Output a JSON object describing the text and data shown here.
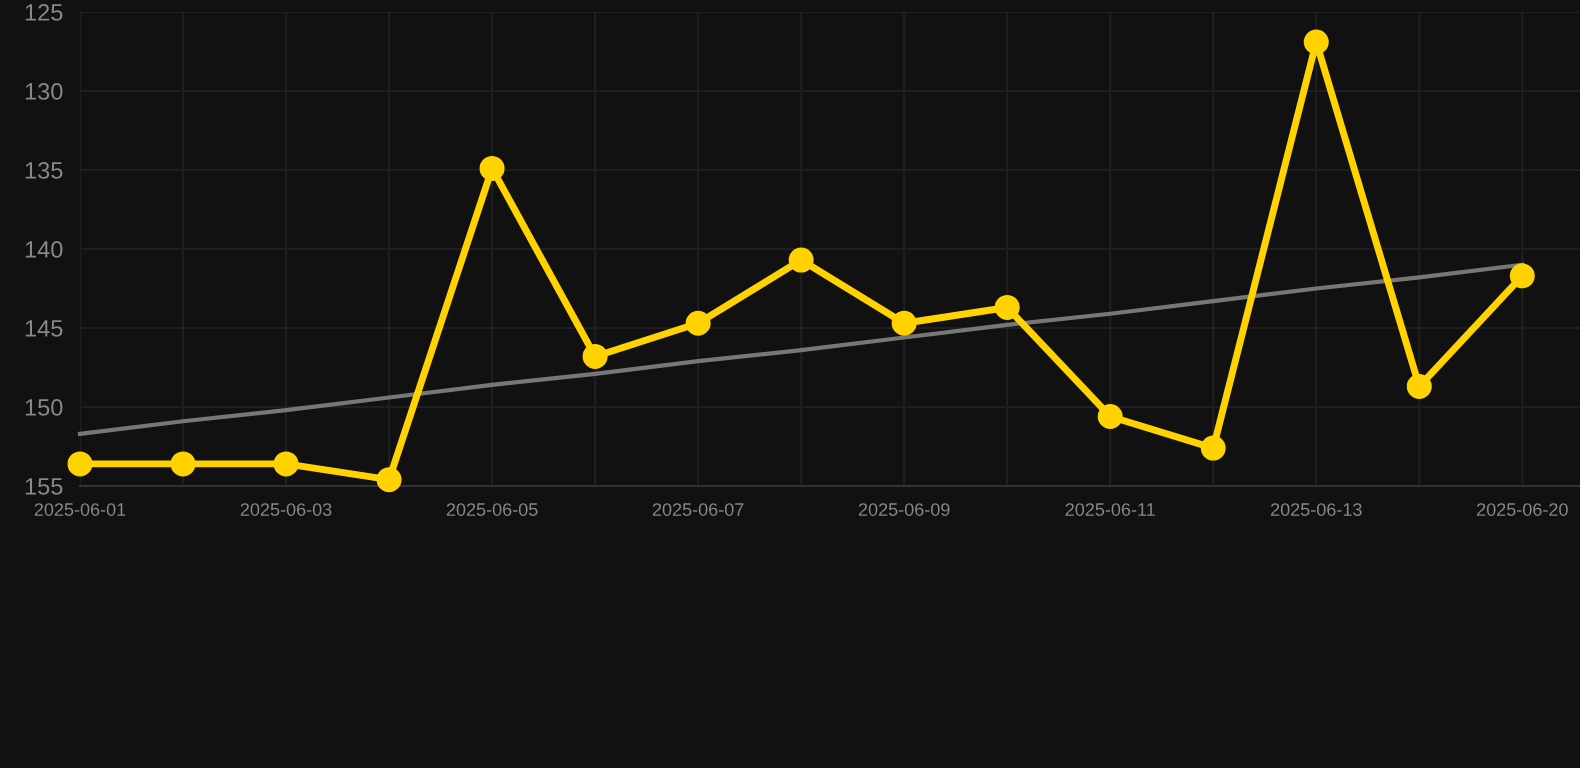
{
  "chart_data": {
    "type": "line",
    "categories": [
      "2025-06-01",
      null,
      "2025-06-03",
      null,
      "2025-06-05",
      null,
      "2025-06-07",
      null,
      "2025-06-09",
      null,
      "2025-06-11",
      null,
      "2025-06-13",
      null,
      "2025-06-20"
    ],
    "series": [
      {
        "color": "#ffd200",
        "values": [
          153.6,
          153.6,
          153.6,
          154.6,
          134.9,
          146.8,
          144.7,
          140.7,
          144.7,
          143.7,
          150.6,
          152.6,
          126.9,
          148.7,
          141.7
        ],
        "marker": "circle"
      },
      {
        "type": "line",
        "color": "#777777",
        "values": [
          151.7,
          150.9,
          150.2,
          149.4,
          148.6,
          147.9,
          147.1,
          146.4,
          145.6,
          144.8,
          144.1,
          143.3,
          142.5,
          141.8,
          141.0
        ],
        "marker": "none"
      }
    ],
    "ylim": [
      155,
      125
    ],
    "yticks": [
      125,
      130,
      135,
      140,
      145,
      150,
      155
    ],
    "grid": true,
    "line_style": "solid"
  }
}
